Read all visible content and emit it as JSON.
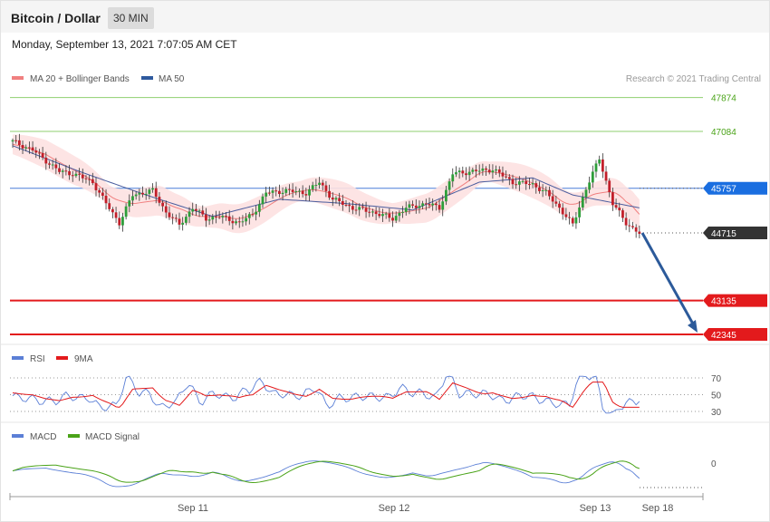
{
  "header": {
    "title": "Bitcoin / Dollar",
    "interval": "30 MIN"
  },
  "date_label": "Monday, September 13, 2021 7:07:05 AM CET",
  "legends": {
    "main": [
      {
        "label": "MA 20 + Bollinger Bands",
        "color": "#f08080"
      },
      {
        "label": "MA 50",
        "color": "#2f5a9e"
      }
    ],
    "rsi": [
      {
        "label": "RSI",
        "color": "#5b7fd6"
      },
      {
        "label": "9MA",
        "color": "#e31a1c"
      }
    ],
    "macd": [
      {
        "label": "MACD",
        "color": "#5b7fd6"
      },
      {
        "label": "MACD Signal",
        "color": "#4aa318"
      }
    ]
  },
  "copyright": "Research © 2021 Trading Central",
  "colors": {
    "up": "#2e9e3a",
    "down": "#c21f2a",
    "resistance": "#8fcf6f",
    "pivot": "#4a7fd8",
    "support": "#e31a1c",
    "price": "#333333",
    "arrow": "#2c5a9a"
  },
  "chart_data": {
    "type": "candlestick",
    "y_range": [
      41900,
      48200
    ],
    "levels": [
      {
        "value": 47874,
        "label": "47874",
        "kind": "resistance"
      },
      {
        "value": 47084,
        "label": "47084",
        "kind": "resistance"
      },
      {
        "value": 45757,
        "label": "45757",
        "kind": "pivot"
      },
      {
        "value": 44715,
        "label": "44715",
        "kind": "price"
      },
      {
        "value": 43135,
        "label": "43135",
        "kind": "support"
      },
      {
        "value": 42345,
        "label": "42345",
        "kind": "support"
      }
    ],
    "x_ticks": [
      "Sep 11",
      "Sep 12",
      "Sep 13",
      "Sep 18"
    ],
    "anchors": [
      [
        0,
        46850
      ],
      [
        6,
        46650
      ],
      [
        10,
        46400
      ],
      [
        14,
        46150
      ],
      [
        18,
        46100
      ],
      [
        24,
        45900
      ],
      [
        28,
        45400
      ],
      [
        32,
        44950
      ],
      [
        36,
        45600
      ],
      [
        42,
        45700
      ],
      [
        46,
        45200
      ],
      [
        50,
        44900
      ],
      [
        54,
        45300
      ],
      [
        58,
        45050
      ],
      [
        62,
        45100
      ],
      [
        68,
        44950
      ],
      [
        72,
        45150
      ],
      [
        76,
        45650
      ],
      [
        82,
        45700
      ],
      [
        88,
        45650
      ],
      [
        92,
        45900
      ],
      [
        96,
        45500
      ],
      [
        102,
        45300
      ],
      [
        108,
        45200
      ],
      [
        114,
        45050
      ],
      [
        118,
        45300
      ],
      [
        124,
        45400
      ],
      [
        128,
        45300
      ],
      [
        132,
        46100
      ],
      [
        138,
        46150
      ],
      [
        144,
        46200
      ],
      [
        150,
        45900
      ],
      [
        156,
        45850
      ],
      [
        160,
        45650
      ],
      [
        164,
        45300
      ],
      [
        168,
        44900
      ],
      [
        172,
        45750
      ],
      [
        176,
        46450
      ],
      [
        180,
        45400
      ],
      [
        184,
        44950
      ],
      [
        188,
        44700
      ]
    ],
    "ma_anchors": [
      [
        0,
        46750
      ],
      [
        20,
        46150
      ],
      [
        40,
        45600
      ],
      [
        60,
        45100
      ],
      [
        80,
        45500
      ],
      [
        100,
        45400
      ],
      [
        120,
        45250
      ],
      [
        140,
        45900
      ],
      [
        156,
        46000
      ],
      [
        168,
        45600
      ],
      [
        188,
        45300
      ]
    ],
    "rsi": {
      "ticks": [
        70,
        50,
        30
      ],
      "range": [
        20,
        80
      ]
    },
    "macd": {
      "ticks": [
        0
      ]
    }
  }
}
